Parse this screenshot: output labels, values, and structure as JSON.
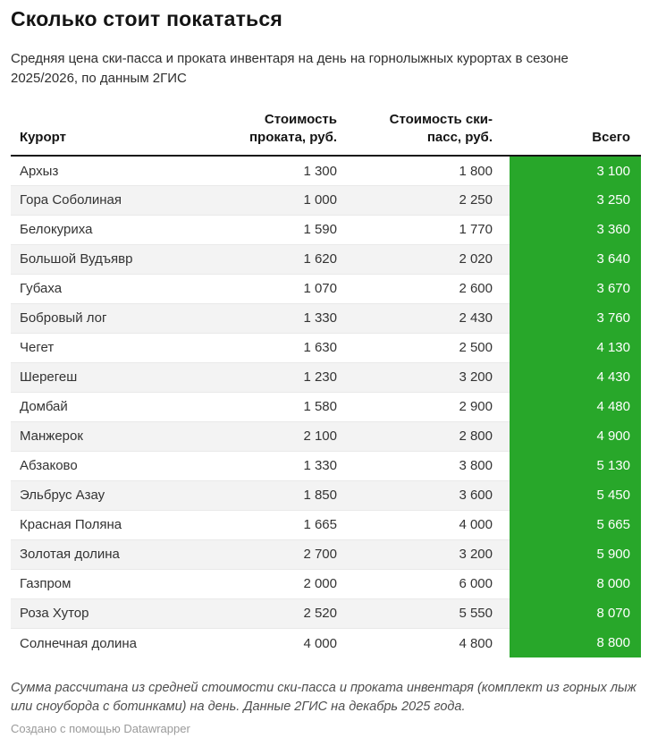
{
  "header": {
    "title": "Сколько стоит покататься",
    "subtitle": "Средняя цена ски-пасса и проката инвентаря на день на горнолыжных курортах в сезоне 2025/2026, по данным 2ГИС"
  },
  "table": {
    "columns": [
      {
        "label": "Курорт",
        "align": "left"
      },
      {
        "label": "Стоимость\nпроката, руб.",
        "align": "right"
      },
      {
        "label": "Стоимость ски-\nпасс, руб.",
        "align": "right"
      },
      {
        "label": "Всего",
        "align": "right"
      }
    ],
    "rows": [
      {
        "resort": "Архыз",
        "rental": "1 300",
        "skipass": "1 800",
        "total": "3 100"
      },
      {
        "resort": "Гора Соболиная",
        "rental": "1 000",
        "skipass": "2 250",
        "total": "3 250"
      },
      {
        "resort": "Белокуриха",
        "rental": "1 590",
        "skipass": "1 770",
        "total": "3 360"
      },
      {
        "resort": "Большой Вудъявр",
        "rental": "1 620",
        "skipass": "2 020",
        "total": "3 640"
      },
      {
        "resort": "Губаха",
        "rental": "1 070",
        "skipass": "2 600",
        "total": "3 670"
      },
      {
        "resort": "Бобровый лог",
        "rental": "1 330",
        "skipass": "2 430",
        "total": "3 760"
      },
      {
        "resort": "Чегет",
        "rental": "1 630",
        "skipass": "2 500",
        "total": "4 130"
      },
      {
        "resort": "Шерегеш",
        "rental": "1 230",
        "skipass": "3 200",
        "total": "4 430"
      },
      {
        "resort": "Домбай",
        "rental": "1 580",
        "skipass": "2 900",
        "total": "4 480"
      },
      {
        "resort": "Манжерок",
        "rental": "2 100",
        "skipass": "2 800",
        "total": "4 900"
      },
      {
        "resort": "Абзаково",
        "rental": "1 330",
        "skipass": "3 800",
        "total": "5 130"
      },
      {
        "resort": "Эльбрус Азау",
        "rental": "1 850",
        "skipass": "3 600",
        "total": "5 450"
      },
      {
        "resort": "Красная Поляна",
        "rental": "1 665",
        "skipass": "4 000",
        "total": "5 665"
      },
      {
        "resort": "Золотая долина",
        "rental": "2 700",
        "skipass": "3 200",
        "total": "5 900"
      },
      {
        "resort": "Газпром",
        "rental": "2 000",
        "skipass": "6 000",
        "total": "8 000"
      },
      {
        "resort": "Роза Хутор",
        "rental": "2 520",
        "skipass": "5 550",
        "total": "8 070"
      },
      {
        "resort": "Солнечная долина",
        "rental": "4 000",
        "skipass": "4 800",
        "total": "8 800"
      }
    ]
  },
  "footer": {
    "note": "Сумма рассчитана из средней стоимости ски-пасса и проката инвентаря (комплект из горных лыж или сноуборда с ботинками) на день. Данные 2ГИС на декабрь 2025 года.",
    "attribution": "Создано с помощью Datawrapper"
  },
  "colors": {
    "total_column_bg": "#28a72a",
    "total_column_text": "#ffffff",
    "stripe_bg": "#f3f3f3",
    "header_rule": "#161616",
    "row_line": "#e9e9e9"
  },
  "chart_data": {
    "type": "table",
    "title": "Сколько стоит покататься",
    "subtitle": "Средняя цена ски-пасса и проката инвентаря на день на горнолыжных курортах в сезоне 2025/2026, по данным 2ГИС",
    "columns": [
      "Курорт",
      "Стоимость проката, руб.",
      "Стоимость ски-пасс, руб.",
      "Всего"
    ],
    "categories": [
      "Архыз",
      "Гора Соболиная",
      "Белокуриха",
      "Большой Вудъявр",
      "Губаха",
      "Бобровый лог",
      "Чегет",
      "Шерегеш",
      "Домбай",
      "Манжерок",
      "Абзаково",
      "Эльбрус Азау",
      "Красная Поляна",
      "Золотая долина",
      "Газпром",
      "Роза Хутор",
      "Солнечная долина"
    ],
    "series": [
      {
        "name": "Стоимость проката, руб.",
        "values": [
          1300,
          1000,
          1590,
          1620,
          1070,
          1330,
          1630,
          1230,
          1580,
          2100,
          1330,
          1850,
          1665,
          2700,
          2000,
          2520,
          4000
        ]
      },
      {
        "name": "Стоимость ски-пасс, руб.",
        "values": [
          1800,
          2250,
          1770,
          2020,
          2600,
          2430,
          2500,
          3200,
          2900,
          2800,
          3800,
          3600,
          4000,
          3200,
          6000,
          5550,
          4800
        ]
      },
      {
        "name": "Всего",
        "values": [
          3100,
          3250,
          3360,
          3640,
          3670,
          3760,
          4130,
          4430,
          4480,
          4900,
          5130,
          5450,
          5665,
          5900,
          8000,
          8070,
          8800
        ]
      }
    ],
    "sort": "Всего ascending",
    "note": "Сумма рассчитана из средней стоимости ски-пасса и проката инвентаря (комплект из горных лыж или сноуборда с ботинками) на день. Данные 2ГИС на декабрь 2025 года.",
    "source_attribution": "Создано с помощью Datawrapper"
  }
}
